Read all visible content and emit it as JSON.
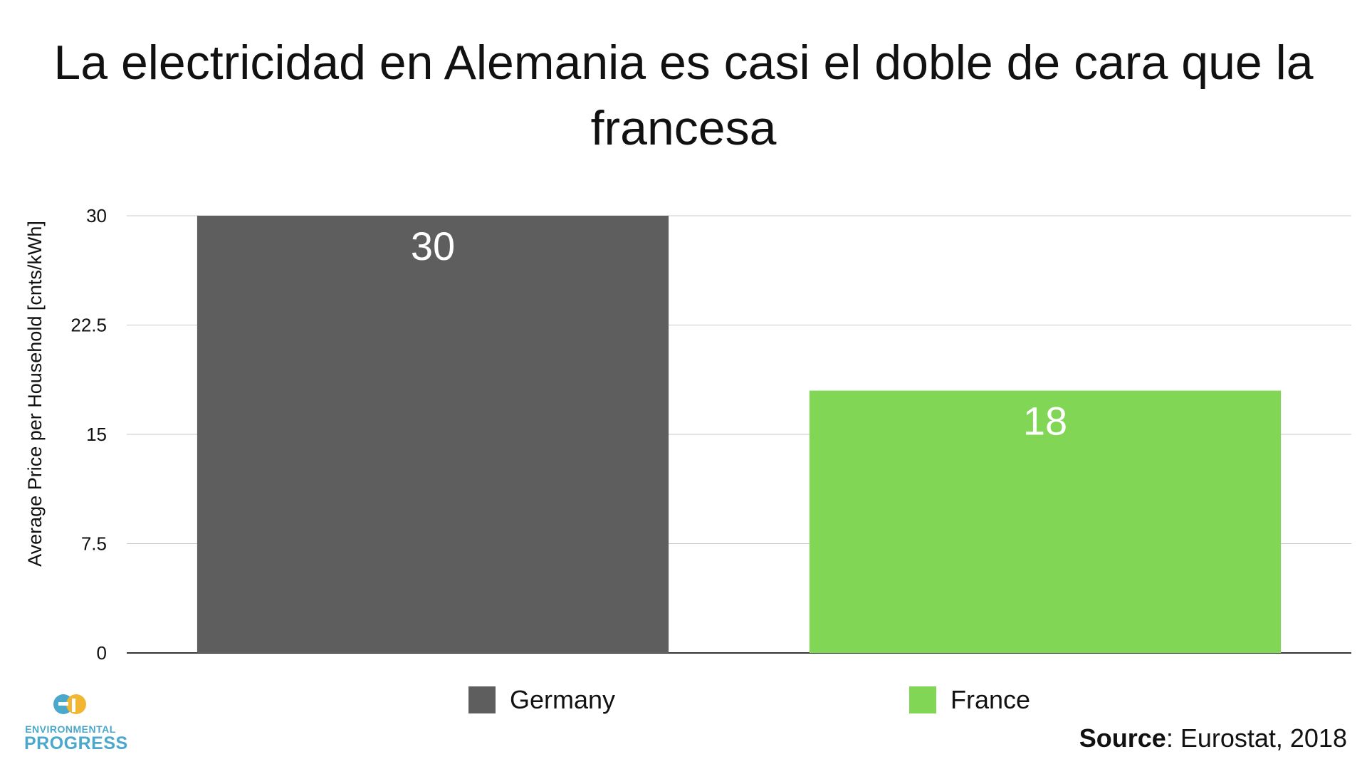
{
  "chart_data": {
    "type": "bar",
    "title": "La electricidad en Alemania es casi el doble de cara que la francesa",
    "ylabel": "Average Price per Household [cnts/kWh]",
    "xlabel": "",
    "ylim": [
      0,
      30
    ],
    "yticks": [
      "0",
      "7.5",
      "15",
      "22.5",
      "30"
    ],
    "grid": true,
    "legend_position": "bottom",
    "categories": [
      "Germany",
      "France"
    ],
    "values": [
      30,
      18
    ],
    "colors": [
      "#5e5e5e",
      "#82d655"
    ],
    "data_labels": [
      "30",
      "18"
    ]
  },
  "logo": {
    "line1": "ENVIRONMENTAL",
    "line2": "PROGRESS",
    "color": "#4aa8cc",
    "accent": "#f2b632"
  },
  "source": {
    "label": "Source",
    "text": ": Eurostat, 2018"
  }
}
